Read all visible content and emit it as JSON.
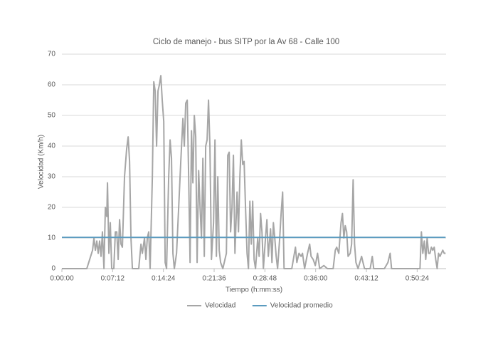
{
  "chart_data": {
    "type": "line",
    "title": "Ciclo de manejo - bus SITP por la Av 68 - Calle 100",
    "x_label": "Tiempo (h:mm:ss)",
    "y_label": "Velocidad (Km/h)",
    "x": [
      0,
      212,
      261,
      273,
      285,
      297,
      309,
      321,
      333,
      345,
      358,
      370,
      382,
      388,
      400,
      412,
      424,
      442,
      455,
      467,
      479,
      491,
      503,
      515,
      533,
      551,
      564,
      576,
      588,
      600,
      654,
      673,
      685,
      703,
      715,
      727,
      739,
      751,
      770,
      782,
      794,
      806,
      818,
      830,
      842,
      854,
      867,
      879,
      891,
      909,
      921,
      933,
      945,
      957,
      976,
      994,
      1012,
      1030,
      1042,
      1054,
      1067,
      1079,
      1091,
      1103,
      1115,
      1127,
      1139,
      1151,
      1164,
      1176,
      1188,
      1200,
      1212,
      1224,
      1236,
      1248,
      1260,
      1273,
      1291,
      1303,
      1315,
      1327,
      1339,
      1351,
      1370,
      1400,
      1412,
      1424,
      1436,
      1448,
      1460,
      1473,
      1491,
      1503,
      1515,
      1527,
      1539,
      1551,
      1563,
      1576,
      1588,
      1600,
      1612,
      1624,
      1636,
      1648,
      1667,
      1679,
      1691,
      1703,
      1715,
      1733,
      1745,
      1757,
      1776,
      1788,
      1800,
      1812,
      1824,
      1836,
      1854,
      1866,
      1879,
      1891,
      1927,
      1957,
      1988,
      2000,
      2018,
      2036,
      2048,
      2066,
      2091,
      2109,
      2121,
      2139,
      2157,
      2176,
      2194,
      2230,
      2260,
      2309,
      2327,
      2339,
      2357,
      2376,
      2388,
      2400,
      2412,
      2424,
      2436,
      2454,
      2466,
      2479,
      2491,
      2503,
      2521,
      2551,
      2563,
      2576,
      2606,
      2624,
      2642,
      2654,
      2685,
      2745,
      2775,
      2794,
      2806,
      2866,
      3048,
      3060,
      3072,
      3085,
      3097,
      3109,
      3121,
      3133,
      3145,
      3157,
      3169,
      3182,
      3194,
      3206,
      3218,
      3230,
      3242,
      3254,
      3266
    ],
    "series": [
      {
        "name": "Velocidad",
        "color": "#a6a6a6",
        "values": [
          0,
          0,
          6,
          10,
          6,
          9,
          5,
          9,
          4,
          12,
          0,
          20,
          17,
          28,
          5,
          15,
          0,
          0,
          12,
          12,
          3,
          16,
          8,
          7,
          30,
          39,
          43,
          35,
          10,
          0,
          0,
          8,
          5,
          10,
          3,
          10,
          12,
          0,
          30,
          61,
          58,
          40,
          58,
          60,
          63,
          55,
          48,
          2,
          0,
          30,
          42,
          36,
          5,
          0,
          5,
          20,
          35,
          49,
          40,
          54,
          55,
          30,
          2,
          45,
          28,
          50,
          43,
          2,
          32,
          20,
          10,
          36,
          4,
          40,
          42,
          55,
          40,
          3,
          15,
          42,
          4,
          30,
          6,
          2,
          0,
          5,
          37,
          38,
          12,
          20,
          37,
          5,
          25,
          12,
          30,
          42,
          34,
          35,
          20,
          5,
          0,
          22,
          8,
          22,
          3,
          0,
          10,
          4,
          18,
          12,
          0,
          10,
          16,
          4,
          13,
          2,
          15,
          10,
          4,
          0,
          10,
          18,
          25,
          0,
          0,
          0,
          7,
          2,
          5,
          4,
          5,
          0,
          5,
          8,
          4,
          3,
          1,
          5,
          0,
          1,
          0,
          0,
          6,
          7,
          5,
          15,
          18,
          10,
          14,
          12,
          4,
          5,
          8,
          29,
          8,
          2,
          0,
          4,
          2,
          0,
          0,
          0,
          4,
          0,
          0,
          0,
          2,
          5,
          0,
          0,
          0,
          12,
          5,
          9,
          3,
          10,
          5,
          5,
          7,
          6,
          7,
          3,
          0,
          5,
          4,
          5,
          6,
          5,
          5
        ]
      },
      {
        "name": "Velocidad promedio",
        "color": "#5b9bbf",
        "x": [
          0,
          3266
        ],
        "values": [
          10.2,
          10.2
        ]
      }
    ],
    "xlim": [
      0,
      3270
    ],
    "xticks": [
      {
        "value": 0,
        "label": "0:00:00"
      },
      {
        "value": 432,
        "label": "0:07:12"
      },
      {
        "value": 864,
        "label": "0:14:24"
      },
      {
        "value": 1296,
        "label": "0:21:36"
      },
      {
        "value": 1728,
        "label": "0:28:48"
      },
      {
        "value": 2160,
        "label": "0:36:00"
      },
      {
        "value": 2592,
        "label": "0:43:12"
      },
      {
        "value": 3024,
        "label": "0:50:24"
      }
    ],
    "ylim": [
      0,
      70
    ],
    "yticks": [
      0,
      10,
      20,
      30,
      40,
      50,
      60,
      70
    ],
    "grid": true,
    "legend": "bottom"
  }
}
